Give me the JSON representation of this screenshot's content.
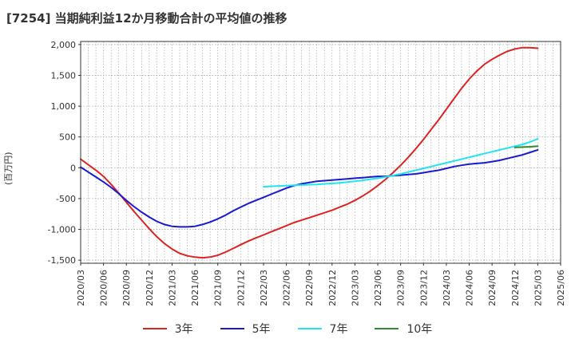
{
  "chart_data": {
    "type": "line",
    "title": "[7254]  当期純利益12か月移動合計の平均値の推移",
    "xlabel": "",
    "ylabel": "(百万円)",
    "ylim": [
      -1550,
      2050
    ],
    "yticks": [
      2000,
      1500,
      1000,
      500,
      0,
      -500,
      -1000,
      -1500
    ],
    "ytick_labels": [
      "2,000",
      "1,500",
      "1,000",
      "500",
      "0",
      "-500",
      "-1,000",
      "-1,500"
    ],
    "xticks": [
      "2020/03",
      "2020/06",
      "2020/09",
      "2020/12",
      "2021/03",
      "2021/06",
      "2021/09",
      "2021/12",
      "2022/03",
      "2022/06",
      "2022/09",
      "2022/12",
      "2023/03",
      "2023/06",
      "2023/09",
      "2023/12",
      "2024/03",
      "2024/06",
      "2024/09",
      "2024/12",
      "2025/03",
      "2025/06"
    ],
    "grid": true,
    "legend_position": "bottom",
    "series": [
      {
        "name": "3年",
        "color": "#dd2222",
        "x": [
          "2020/03",
          "2020/04",
          "2020/05",
          "2020/06",
          "2020/07",
          "2020/08",
          "2020/09",
          "2020/10",
          "2020/11",
          "2020/12",
          "2021/01",
          "2021/02",
          "2021/03",
          "2021/04",
          "2021/05",
          "2021/06",
          "2021/07",
          "2021/08",
          "2021/09",
          "2021/10",
          "2021/11",
          "2021/12",
          "2022/01",
          "2022/02",
          "2022/03",
          "2022/04",
          "2022/05",
          "2022/06",
          "2022/07",
          "2022/08",
          "2022/09",
          "2022/10",
          "2022/11",
          "2022/12",
          "2023/01",
          "2023/02",
          "2023/03",
          "2023/04",
          "2023/05",
          "2023/06",
          "2023/07",
          "2023/08",
          "2023/09",
          "2023/10",
          "2023/11",
          "2023/12",
          "2024/01",
          "2024/02",
          "2024/03",
          "2024/04",
          "2024/05",
          "2024/06",
          "2024/07",
          "2024/08",
          "2024/09",
          "2024/10",
          "2024/11",
          "2024/12",
          "2025/01",
          "2025/02",
          "2025/03"
        ],
        "values": [
          140,
          50,
          -40,
          -140,
          -270,
          -410,
          -560,
          -710,
          -850,
          -990,
          -1120,
          -1230,
          -1320,
          -1390,
          -1430,
          -1450,
          -1460,
          -1450,
          -1420,
          -1370,
          -1310,
          -1250,
          -1190,
          -1140,
          -1090,
          -1040,
          -990,
          -940,
          -890,
          -850,
          -810,
          -770,
          -730,
          -690,
          -640,
          -590,
          -530,
          -460,
          -380,
          -290,
          -190,
          -80,
          40,
          170,
          310,
          460,
          620,
          780,
          950,
          1120,
          1290,
          1440,
          1570,
          1680,
          1760,
          1830,
          1890,
          1930,
          1950,
          1950,
          1940
        ]
      },
      {
        "name": "5年",
        "color": "#1a1acc",
        "x": [
          "2020/03",
          "2020/04",
          "2020/05",
          "2020/06",
          "2020/07",
          "2020/08",
          "2020/09",
          "2020/10",
          "2020/11",
          "2020/12",
          "2021/01",
          "2021/02",
          "2021/03",
          "2021/04",
          "2021/05",
          "2021/06",
          "2021/07",
          "2021/08",
          "2021/09",
          "2021/10",
          "2021/11",
          "2021/12",
          "2022/01",
          "2022/02",
          "2022/03",
          "2022/04",
          "2022/05",
          "2022/06",
          "2022/07",
          "2022/08",
          "2022/09",
          "2022/10",
          "2022/11",
          "2022/12",
          "2023/01",
          "2023/02",
          "2023/03",
          "2023/04",
          "2023/05",
          "2023/06",
          "2023/07",
          "2023/08",
          "2023/09",
          "2023/10",
          "2023/11",
          "2023/12",
          "2024/01",
          "2024/02",
          "2024/03",
          "2024/04",
          "2024/05",
          "2024/06",
          "2024/07",
          "2024/08",
          "2024/09",
          "2024/10",
          "2024/11",
          "2024/12",
          "2025/01",
          "2025/02",
          "2025/03"
        ],
        "values": [
          10,
          -70,
          -150,
          -230,
          -320,
          -420,
          -530,
          -630,
          -720,
          -800,
          -870,
          -920,
          -950,
          -960,
          -960,
          -950,
          -920,
          -880,
          -830,
          -770,
          -700,
          -640,
          -580,
          -530,
          -480,
          -430,
          -380,
          -330,
          -290,
          -260,
          -240,
          -220,
          -210,
          -200,
          -190,
          -180,
          -170,
          -160,
          -150,
          -140,
          -140,
          -130,
          -120,
          -110,
          -100,
          -80,
          -60,
          -40,
          -10,
          20,
          40,
          60,
          70,
          80,
          100,
          120,
          150,
          180,
          210,
          250,
          290
        ]
      },
      {
        "name": "7年",
        "color": "#22e4ee",
        "x": [
          "2022/03",
          "2022/04",
          "2022/05",
          "2022/06",
          "2022/07",
          "2022/08",
          "2022/09",
          "2022/10",
          "2022/11",
          "2022/12",
          "2023/01",
          "2023/02",
          "2023/03",
          "2023/04",
          "2023/05",
          "2023/06",
          "2023/07",
          "2023/08",
          "2023/09",
          "2023/10",
          "2023/11",
          "2023/12",
          "2024/01",
          "2024/02",
          "2024/03",
          "2024/04",
          "2024/05",
          "2024/06",
          "2024/07",
          "2024/08",
          "2024/09",
          "2024/10",
          "2024/11",
          "2024/12",
          "2025/01",
          "2025/02",
          "2025/03"
        ],
        "values": [
          -310,
          -300,
          -295,
          -290,
          -285,
          -280,
          -275,
          -270,
          -262,
          -255,
          -245,
          -232,
          -220,
          -205,
          -188,
          -170,
          -150,
          -125,
          -100,
          -70,
          -40,
          -10,
          20,
          50,
          80,
          110,
          140,
          170,
          200,
          230,
          260,
          290,
          320,
          350,
          380,
          420,
          470
        ]
      },
      {
        "name": "10年",
        "color": "#2e8b2e",
        "x": [
          "2024/12",
          "2025/01",
          "2025/02",
          "2025/03"
        ],
        "values": [
          330,
          335,
          340,
          350
        ]
      }
    ]
  }
}
